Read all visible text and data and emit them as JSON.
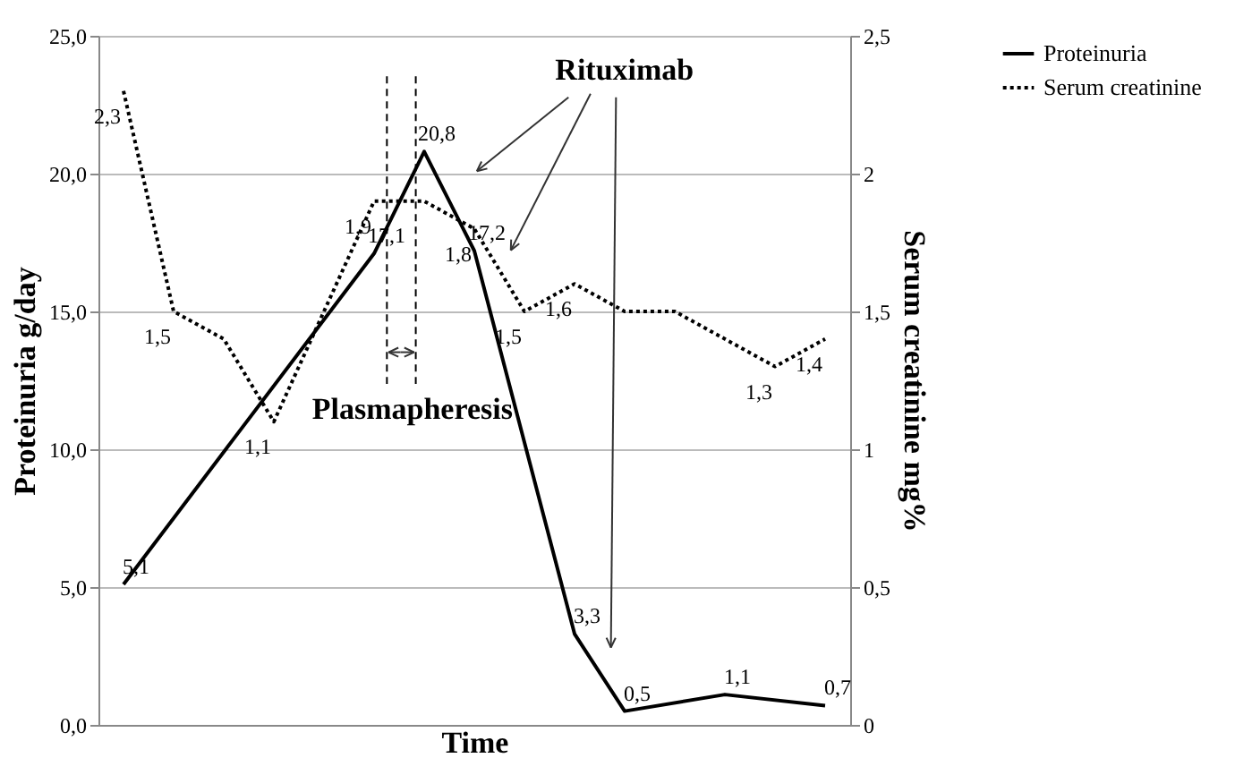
{
  "chart_data": {
    "type": "line",
    "xlabel": "Time",
    "ylabel": "Proteinuria g/day",
    "y2label": "Serum creatinine mg%",
    "categories": [
      null,
      null,
      null,
      null,
      null,
      null,
      null,
      null,
      null,
      null,
      null,
      null,
      null,
      null,
      null
    ],
    "ylim": [
      0,
      25
    ],
    "yticks": [
      {
        "value": 0,
        "label": "0,0"
      },
      {
        "value": 5,
        "label": "5,0"
      },
      {
        "value": 10,
        "label": "10,0"
      },
      {
        "value": 15,
        "label": "15,0"
      },
      {
        "value": 20,
        "label": "20,0"
      },
      {
        "value": 25,
        "label": "25,0"
      }
    ],
    "y2lim": [
      0,
      2.5
    ],
    "y2ticks": [
      0,
      {
        "value": 0.5,
        "label": "0,5"
      },
      1,
      {
        "value": 1.5,
        "label": "1,5"
      },
      2,
      {
        "value": 2.5,
        "label": "2,5"
      }
    ],
    "tick_labels": "y",
    "grid": "y",
    "legend": "right",
    "series": [
      {
        "name": "Proteinuria",
        "color": "#000000",
        "line_style": "solid",
        "values": [
          5.1,
          null,
          null,
          null,
          null,
          17.1,
          20.8,
          17.2,
          null,
          3.3,
          0.5,
          null,
          1.1,
          null,
          0.7
        ],
        "value_labels": [
          "5,1",
          null,
          null,
          null,
          null,
          "17,1",
          "20,8",
          "17,2",
          null,
          "3,3",
          "0,5",
          null,
          "1,1",
          null,
          "0,7"
        ]
      },
      {
        "name": "Serum creatinine",
        "color": "#000000",
        "line_style": "dotted",
        "axis": "y2",
        "values": [
          2.3,
          1.5,
          1.4,
          1.1,
          1.5,
          1.9,
          1.9,
          1.8,
          1.5,
          1.6,
          1.5,
          1.5,
          1.4,
          1.3,
          1.4
        ],
        "value_labels": [
          "2,3",
          "1,5",
          null,
          "1,1",
          null,
          "1,9",
          null,
          "1,8",
          "1,5",
          "1,6",
          null,
          null,
          null,
          "1,3",
          "1,4"
        ]
      }
    ],
    "annotations": [
      "Rituximab",
      "Plasmapheresis"
    ]
  }
}
